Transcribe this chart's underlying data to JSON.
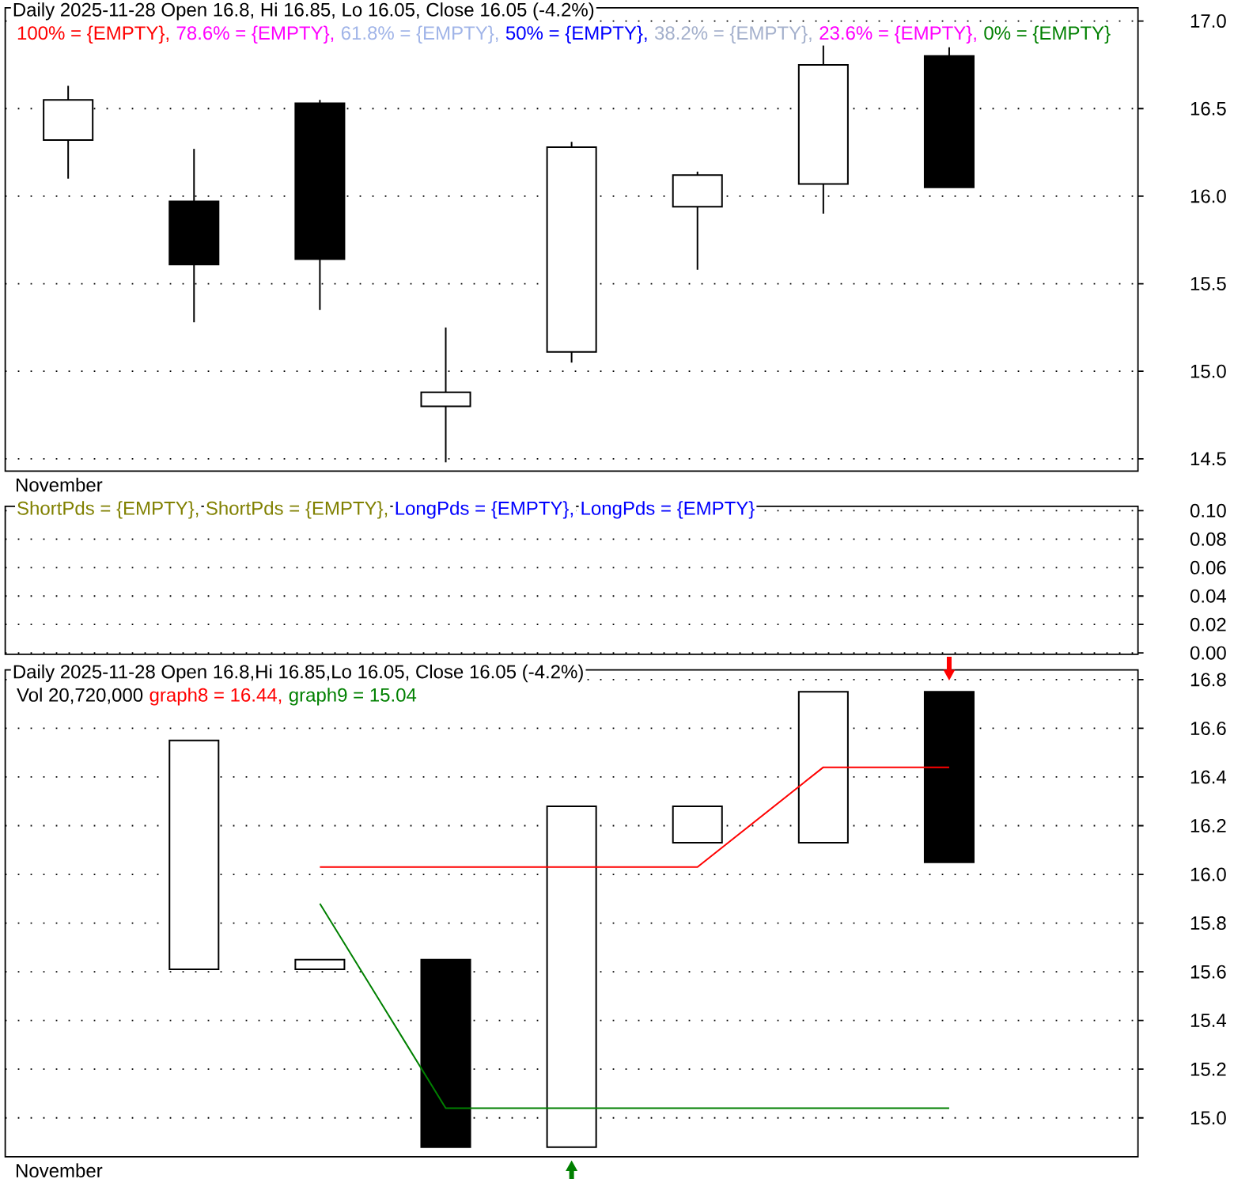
{
  "chart_data": [
    {
      "type": "candlestick",
      "title": "Daily 2025-11-28 Open 16.8, Hi 16.85, Lo 16.05, Close 16.05 (-4.2%)",
      "xlabel": "November",
      "categories": [
        null,
        null,
        null,
        null,
        null,
        null,
        null,
        null,
        null
      ],
      "ohlc": [
        [
          16.32,
          16.63,
          16.1,
          16.55
        ],
        [
          15.97,
          16.27,
          15.28,
          15.61
        ],
        [
          16.53,
          16.55,
          15.35,
          15.64
        ],
        [
          14.8,
          15.25,
          14.48,
          14.88
        ],
        [
          15.11,
          16.31,
          15.05,
          16.28
        ],
        [
          15.94,
          16.14,
          15.58,
          16.12
        ],
        [
          16.07,
          16.86,
          15.9,
          16.75
        ],
        [
          16.8,
          16.85,
          16.05,
          16.05
        ],
        null
      ],
      "series": [
        {
          "type": "line",
          "name": "100% = {EMPTY},",
          "color": "#ff0000",
          "values": [
            null,
            null,
            null,
            null,
            null,
            null,
            null,
            null,
            null
          ]
        },
        {
          "type": "line",
          "name": "78.6% = {EMPTY},",
          "color": "#ff00ff",
          "values": [
            null,
            null,
            null,
            null,
            null,
            null,
            null,
            null,
            null
          ]
        },
        {
          "type": "line",
          "name": "61.8% = {EMPTY},",
          "color": "#a0b4e8",
          "values": [
            null,
            null,
            null,
            null,
            null,
            null,
            null,
            null,
            null
          ]
        },
        {
          "type": "line",
          "name": "50% = {EMPTY},",
          "color": "#0000ff",
          "values": [
            null,
            null,
            null,
            null,
            null,
            null,
            null,
            null,
            null
          ]
        },
        {
          "type": "line",
          "name": "38.2% = {EMPTY},",
          "color": "#a4b0cc",
          "values": [
            null,
            null,
            null,
            null,
            null,
            null,
            null,
            null,
            null
          ]
        },
        {
          "type": "line",
          "name": "23.6% = {EMPTY},",
          "color": "#ff00ff",
          "values": [
            null,
            null,
            null,
            null,
            null,
            null,
            null,
            null,
            null
          ]
        },
        {
          "type": "line",
          "name": "0% = {EMPTY}",
          "color": "#008000",
          "values": [
            null,
            null,
            null,
            null,
            null,
            null,
            null,
            null,
            null
          ]
        }
      ],
      "ylim": [
        14.43,
        17.075
      ],
      "yticks": [
        14.5,
        {
          "value": 15,
          "label": "15.0"
        },
        15.5,
        {
          "value": 16,
          "label": "16.0"
        },
        16.5,
        {
          "value": 17,
          "label": "17.0"
        }
      ],
      "grid": "y",
      "tick_labels": "y"
    },
    {
      "type": "line",
      "categories": [
        null,
        null,
        null,
        null,
        null,
        null,
        null,
        null,
        null
      ],
      "series": [
        {
          "name": "ShortPds = {EMPTY},",
          "color": "#808000",
          "values": [
            null,
            null,
            null,
            null,
            null,
            null,
            null,
            null,
            null
          ]
        },
        {
          "name": "ShortPds = {EMPTY},",
          "color": "#808000",
          "values": [
            null,
            null,
            null,
            null,
            null,
            null,
            null,
            null,
            null
          ]
        },
        {
          "name": "LongPds = {EMPTY},",
          "color": "#0000ff",
          "values": [
            null,
            null,
            null,
            null,
            null,
            null,
            null,
            null,
            null
          ]
        },
        {
          "name": "LongPds = {EMPTY}",
          "color": "#0000ff",
          "values": [
            null,
            null,
            null,
            null,
            null,
            null,
            null,
            null,
            null
          ]
        }
      ],
      "ylim": [
        -0.001,
        0.103
      ],
      "yticks": [
        {
          "value": 0,
          "label": "0.00"
        },
        0.02,
        0.04,
        0.06,
        0.08,
        {
          "value": 0.1,
          "label": "0.10"
        }
      ],
      "grid": "y",
      "tick_labels": "y"
    },
    {
      "type": "candlestick",
      "title": "Daily 2025-11-28 Open 16.8,Hi 16.85,Lo 16.05, Close 16.05 (-4.2%)",
      "subtitle": "Vol 20,720,000",
      "xlabel": "November",
      "categories": [
        null,
        null,
        null,
        null,
        null,
        null,
        null,
        null,
        null
      ],
      "ohlc": [
        null,
        [
          15.61,
          16.55,
          15.61,
          16.55
        ],
        [
          15.61,
          15.65,
          15.61,
          15.65
        ],
        [
          15.65,
          15.65,
          14.88,
          14.88
        ],
        [
          14.88,
          16.28,
          14.88,
          16.28
        ],
        [
          16.13,
          16.28,
          16.13,
          16.28
        ],
        [
          16.13,
          16.75,
          16.13,
          16.75
        ],
        [
          16.75,
          16.75,
          16.05,
          16.05
        ],
        null
      ],
      "series": [
        {
          "type": "line",
          "name": "graph8 = 16.44,",
          "color": "#ff0000",
          "values": [
            null,
            null,
            16.03,
            16.03,
            16.03,
            16.03,
            16.44,
            16.44,
            null
          ]
        },
        {
          "type": "line",
          "name": "graph9 = 15.04",
          "color": "#008000",
          "values": [
            null,
            null,
            15.88,
            15.04,
            15.04,
            15.04,
            15.04,
            15.04,
            null
          ]
        }
      ],
      "ylim": [
        14.84,
        16.84
      ],
      "yticks": [
        {
          "value": 15,
          "label": "15.0"
        },
        15.2,
        15.4,
        15.6,
        15.8,
        {
          "value": 16,
          "label": "16.0"
        },
        16.2,
        16.4,
        16.6,
        16.8
      ],
      "grid": "y",
      "tick_labels": "y"
    }
  ]
}
